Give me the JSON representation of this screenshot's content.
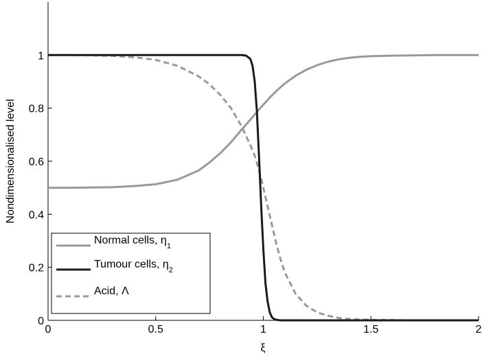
{
  "chart_data": {
    "type": "line",
    "title": "",
    "xlabel": "ξ",
    "ylabel": "Nondimensionalised level",
    "xlim": [
      0,
      2
    ],
    "ylim": [
      0,
      1.2
    ],
    "xticks": [
      0,
      0.5,
      1,
      1.5,
      2
    ],
    "xtick_labels": [
      "0",
      "0.5",
      "1",
      "1.5",
      "2"
    ],
    "yticks": [
      0,
      0.2,
      0.4,
      0.6,
      0.8,
      1
    ],
    "ytick_labels": [
      "0",
      "0.2",
      "0.4",
      "0.6",
      "0.8",
      "1"
    ],
    "grid": false,
    "legend_position": "bottom-left",
    "x": [
      0,
      0.1,
      0.2,
      0.3,
      0.4,
      0.5,
      0.6,
      0.7,
      0.75,
      0.8,
      0.85,
      0.9,
      0.92,
      0.94,
      0.95,
      0.96,
      0.97,
      0.98,
      0.99,
      1.0,
      1.01,
      1.02,
      1.03,
      1.04,
      1.05,
      1.06,
      1.08,
      1.1,
      1.15,
      1.2,
      1.25,
      1.3,
      1.35,
      1.4,
      1.45,
      1.5,
      1.6,
      1.7,
      1.8,
      1.9,
      2.0
    ],
    "series": [
      {
        "name": "Normal cells, η1",
        "label_text": "Normal cells, η",
        "label_sub": "1",
        "color": "#999999",
        "dash": "solid",
        "width": 3,
        "values": [
          0.5,
          0.5,
          0.501,
          0.502,
          0.506,
          0.513,
          0.53,
          0.565,
          0.595,
          0.63,
          0.672,
          0.72,
          0.738,
          0.757,
          0.766,
          0.776,
          0.785,
          0.795,
          0.804,
          0.813,
          0.822,
          0.831,
          0.84,
          0.848,
          0.856,
          0.864,
          0.879,
          0.893,
          0.922,
          0.945,
          0.962,
          0.975,
          0.984,
          0.99,
          0.994,
          0.996,
          0.998,
          0.999,
          1.0,
          1.0,
          1.0
        ]
      },
      {
        "name": "Tumour cells, η2",
        "label_text": "Tumour cells, η",
        "label_sub": "2",
        "color": "#1a1a1a",
        "dash": "solid",
        "width": 3,
        "values": [
          1.0,
          1.0,
          1.0,
          1.0,
          1.0,
          1.0,
          1.0,
          1.0,
          1.0,
          1.0,
          1.0,
          1.0,
          0.998,
          0.985,
          0.96,
          0.9,
          0.79,
          0.62,
          0.43,
          0.27,
          0.14,
          0.07,
          0.03,
          0.012,
          0.005,
          0.002,
          0.0,
          0.0,
          0.0,
          0.0,
          0.0,
          0.0,
          0.0,
          0.0,
          0.0,
          0.0,
          0.0,
          0.0,
          0.0,
          0.0,
          0.0
        ]
      },
      {
        "name": "Acid, Λ",
        "label_text": "Acid, Λ",
        "label_sub": "",
        "color": "#999999",
        "dash": "dashed",
        "width": 3,
        "values": [
          1.0,
          1.0,
          0.999,
          0.997,
          0.992,
          0.982,
          0.96,
          0.92,
          0.89,
          0.85,
          0.8,
          0.73,
          0.695,
          0.66,
          0.64,
          0.62,
          0.595,
          0.565,
          0.535,
          0.5,
          0.465,
          0.43,
          0.395,
          0.36,
          0.325,
          0.29,
          0.23,
          0.18,
          0.1,
          0.055,
          0.03,
          0.017,
          0.009,
          0.005,
          0.003,
          0.002,
          0.001,
          0.0,
          0.0,
          0.0,
          0.0
        ]
      }
    ]
  }
}
